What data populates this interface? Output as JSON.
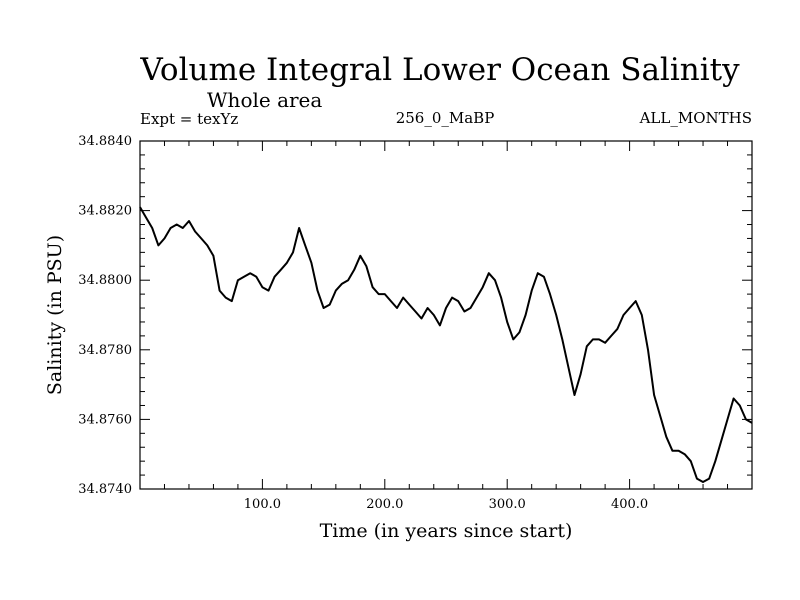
{
  "header": {
    "title": "Volume Integral Lower Ocean Salinity",
    "subtitle": "Whole area",
    "expt_label": "Expt = texYz",
    "run_id": "256_0_MaBP",
    "months": "ALL_MONTHS"
  },
  "chart_data": {
    "type": "line",
    "title": "Volume Integral Lower Ocean Salinity",
    "xlabel": "Time (in years since start)",
    "ylabel": "Salinity (in PSU)",
    "xlim": [
      0,
      500
    ],
    "ylim": [
      34.874,
      34.884
    ],
    "x_ticks": [
      100,
      200,
      300,
      400
    ],
    "x_tick_labels": [
      "100.0",
      "200.0",
      "300.0",
      "400.0"
    ],
    "y_ticks": [
      34.874,
      34.876,
      34.878,
      34.88,
      34.882,
      34.884
    ],
    "y_tick_labels": [
      "34.8740",
      "34.8760",
      "34.8780",
      "34.8800",
      "34.8820",
      "34.8840"
    ],
    "grid": false,
    "line_color": "#000000",
    "series": [
      {
        "x": [
          0,
          5,
          10,
          15,
          20,
          25,
          30,
          35,
          40,
          45,
          50,
          55,
          60,
          65,
          70,
          75,
          80,
          85,
          90,
          95,
          100,
          105,
          110,
          115,
          120,
          125,
          130,
          135,
          140,
          145,
          150,
          155,
          160,
          165,
          170,
          175,
          180,
          185,
          190,
          195,
          200,
          205,
          210,
          215,
          220,
          225,
          230,
          235,
          240,
          245,
          250,
          255,
          260,
          265,
          270,
          275,
          280,
          285,
          290,
          295,
          300,
          305,
          310,
          315,
          320,
          325,
          330,
          335,
          340,
          345,
          350,
          355,
          360,
          365,
          370,
          375,
          380,
          385,
          390,
          395,
          400,
          405,
          410,
          415,
          420,
          425,
          430,
          435,
          440,
          445,
          450,
          455,
          460,
          465,
          470,
          475,
          480,
          485,
          490,
          495,
          500
        ],
        "values": [
          34.8821,
          34.8818,
          34.8815,
          34.881,
          34.8812,
          34.8815,
          34.8816,
          34.8815,
          34.8817,
          34.8814,
          34.8812,
          34.881,
          34.8807,
          34.8797,
          34.8795,
          34.8794,
          34.88,
          34.8801,
          34.8802,
          34.8801,
          34.8798,
          34.8797,
          34.8801,
          34.8803,
          34.8805,
          34.8808,
          34.8815,
          34.881,
          34.8805,
          34.8797,
          34.8792,
          34.8793,
          34.8797,
          34.8799,
          34.88,
          34.8803,
          34.8807,
          34.8804,
          34.8798,
          34.8796,
          34.8796,
          34.8794,
          34.8792,
          34.8795,
          34.8793,
          34.8791,
          34.8789,
          34.8792,
          34.879,
          34.8787,
          34.8792,
          34.8795,
          34.8794,
          34.8791,
          34.8792,
          34.8795,
          34.8798,
          34.8802,
          34.88,
          34.8795,
          34.8788,
          34.8783,
          34.8785,
          34.879,
          34.8797,
          34.8802,
          34.8801,
          34.8796,
          34.879,
          34.8783,
          34.8775,
          34.8767,
          34.8773,
          34.8781,
          34.8783,
          34.8783,
          34.8782,
          34.8784,
          34.8786,
          34.879,
          34.8792,
          34.8794,
          34.879,
          34.878,
          34.8767,
          34.8761,
          34.8755,
          34.8751,
          34.8751,
          34.875,
          34.8748,
          34.8743,
          34.8742,
          34.8743,
          34.8748,
          34.8754,
          34.876,
          34.8766,
          34.8764,
          34.876,
          34.8759
        ]
      }
    ]
  }
}
